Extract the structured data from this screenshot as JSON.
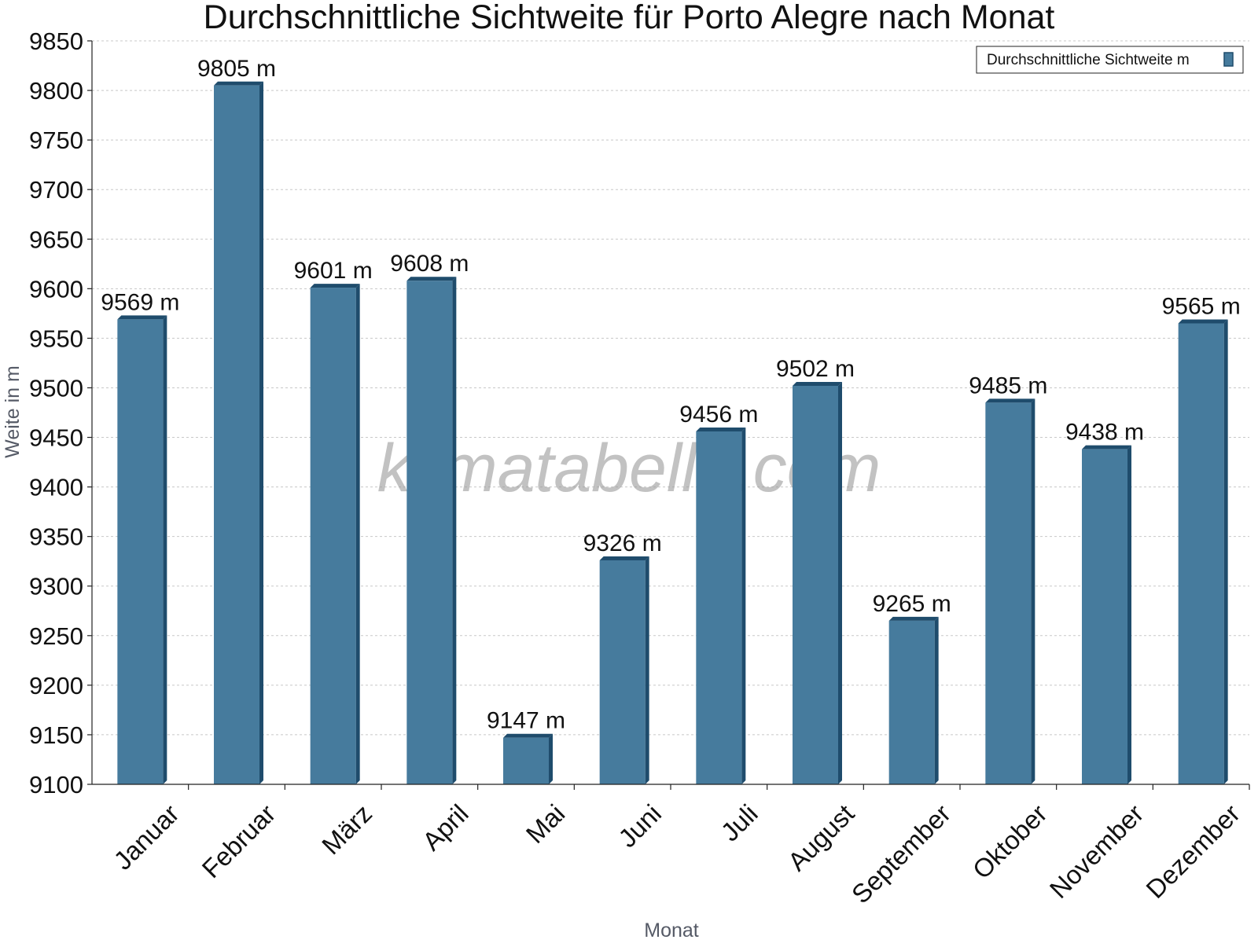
{
  "chart_data": {
    "type": "bar",
    "title": "Durchschnittliche Sichtweite für Porto Alegre nach Monat",
    "xlabel": "Monat",
    "ylabel": "Weite in m",
    "watermark": "klimatabelle.com",
    "categories": [
      "Januar",
      "Februar",
      "März",
      "April",
      "Mai",
      "Juni",
      "Juli",
      "August",
      "September",
      "Oktober",
      "November",
      "Dezember"
    ],
    "series": [
      {
        "name": "Durchschnittliche Sichtweite m",
        "values": [
          9569,
          9805,
          9601,
          9608,
          9147,
          9326,
          9456,
          9502,
          9265,
          9485,
          9438,
          9565
        ],
        "labels": [
          "9569 m",
          "9805 m",
          "9601 m",
          "9608 m",
          "9147 m",
          "9326 m",
          "9456 m",
          "9502 m",
          "9265 m",
          "9485 m",
          "9438 m",
          "9565 m"
        ]
      }
    ],
    "ylim": [
      9100,
      9850
    ],
    "yticks": [
      "9100",
      "9150",
      "9200",
      "9250",
      "9300",
      "9350",
      "9400",
      "9450",
      "9500",
      "9550",
      "9600",
      "9650",
      "9700",
      "9750",
      "9800",
      "9850"
    ],
    "grid": true,
    "legend": "top-right",
    "colors": {
      "bar": "#467b9d",
      "bar_dark": "#1f4c6c"
    }
  }
}
